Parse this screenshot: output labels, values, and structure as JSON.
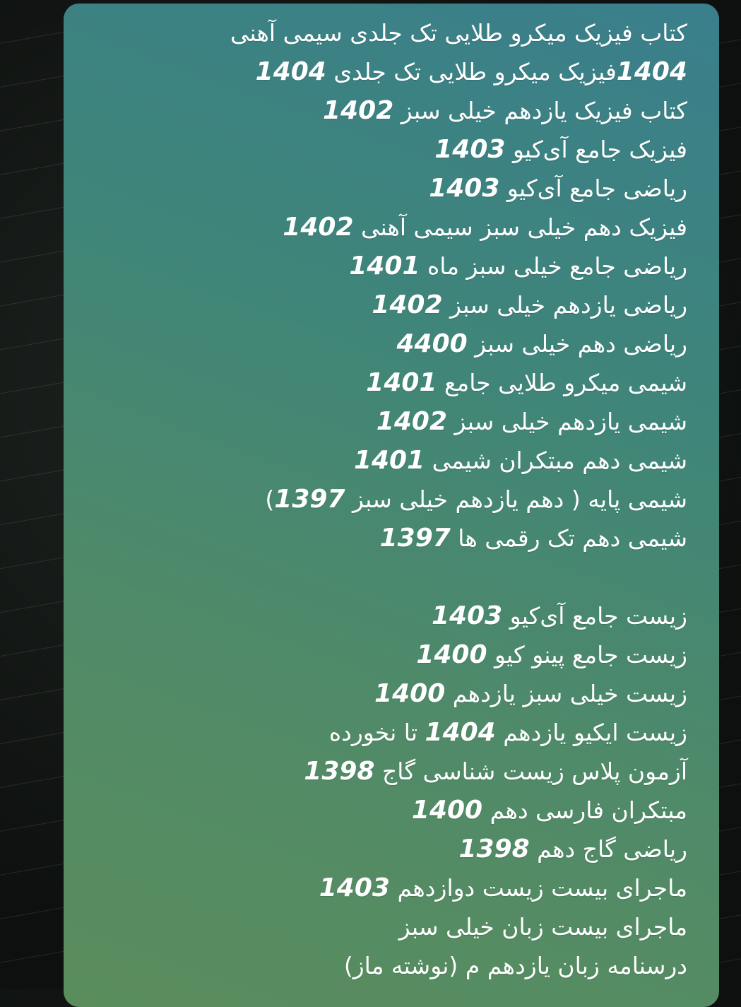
{
  "message": {
    "paragraphs": [
      [
        "کتاب فیزیک میکرو طلایی تک جلدی سیمی آهنی",
        "1404فیزیک میکرو طلایی تک جلدی 1404",
        "کتاب فیزیک یازدهم خیلی سبز 1402",
        "فیزیک جامع آی‌کیو 1403",
        "ریاضی جامع آی‌کیو 1403",
        "فیزیک دهم خیلی سبز سیمی آهنی 1402",
        "ریاضی جامع خیلی سبز ماه 1401",
        "ریاضی یازدهم خیلی سبز 1402",
        "ریاضی دهم خیلی سبز 4400",
        "شیمی میکرو طلایی جامع 1401",
        "شیمی یازدهم خیلی سبز 1402",
        "شیمی دهم مبتکران شیمی 1401",
        "شیمی پایه ( دهم یازدهم خیلی سبز 1397)",
        "شیمی دهم تک رقمی ها 1397"
      ],
      [
        "زیست جامع آی‌کیو 1403",
        "زیست جامع پینو کیو 1400",
        "زیست خیلی سبز یازدهم 1400",
        "زیست ایکیو یازدهم 1404 تا نخورده",
        "آزمون پلاس زیست شناسی گاج 1398",
        "مبتکران فارسی دهم 1400",
        "ریاضی گاج دهم 1398",
        "ماجرای بیست زیست دوازدهم 1403",
        "ماجرای بیست زبان خیلی سبز",
        "درسنامه زبان یازدهم م (نوشته ماز)"
      ]
    ]
  }
}
